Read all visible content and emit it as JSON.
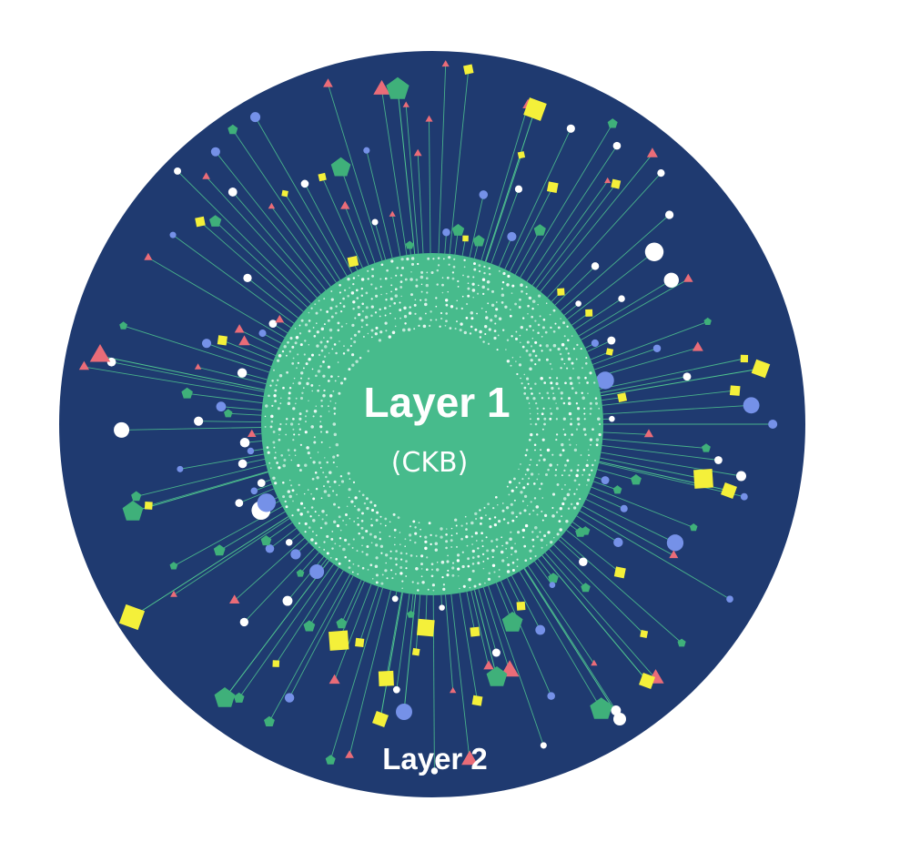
{
  "diagram": {
    "inner": {
      "title": "Layer 1",
      "subtitle": "(CKB)"
    },
    "outer": {
      "title": "Layer 2"
    },
    "colors": {
      "outer_fill": "#1f3a70",
      "inner_fill": "#47bb8c",
      "spoke": "#4fc58f",
      "dot_white": "#ffffff",
      "dot_blue": "#7591e8",
      "square_yellow": "#f4f03a",
      "triangle_red": "#ea6c78",
      "pentagon_green": "#3fb07a"
    },
    "node_shapes": [
      "circle-white",
      "circle-blue",
      "square-yellow",
      "triangle-red",
      "pentagon-green"
    ]
  }
}
